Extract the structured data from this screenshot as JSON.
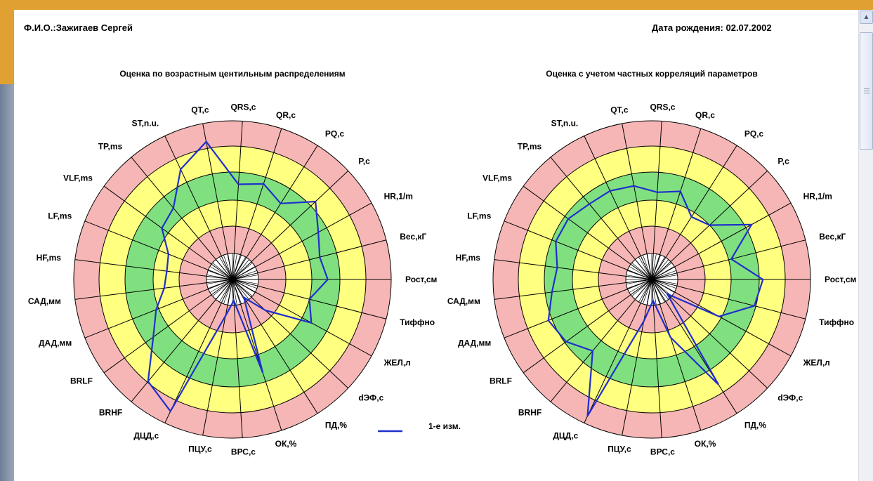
{
  "header": {
    "name_label": "Ф.И.О.:Зажигаев Сергей",
    "birth_label": "Дата рождения: 02.07.2002"
  },
  "legend": {
    "label": "1-е изм.",
    "color": "#1f2fcc"
  },
  "colors": {
    "outer_ring": "#f7b6b6",
    "ring_yellow": "#ffff80",
    "ring_green": "#80e080",
    "center": "#ffffff",
    "line": "#1f2fcc"
  },
  "chart_data": [
    {
      "type": "radar",
      "title": "Оценка по возрастным центильным распределениям",
      "axes": [
        "Рост,см",
        "Вес,кГ",
        "HR,1/m",
        "P,c",
        "PQ,c",
        "QR,c",
        "QRS,c",
        "QT,c",
        "ST,n.u.",
        "TP,ms",
        "VLF,ms",
        "LF,ms",
        "HF,ms",
        "САД,мм",
        "ДАД,мм",
        "BRLF",
        "BRHF",
        "ДЦД,с",
        "ПЦУ,с",
        "ВРС,с",
        "ОК,%",
        "ПД,%",
        "dЭФ,с",
        "ЖЕЛ,л",
        "Тиффно"
      ],
      "zones": [
        "center",
        "red",
        "yellow",
        "green",
        "yellow",
        "red"
      ],
      "series": [
        {
          "name": "1-е изм.",
          "values": [
            3.6,
            3.4,
            3.7,
            4.3,
            3.4,
            3.8,
            3.6,
            5.3,
            4.6,
            3.5,
            3.3,
            2.6,
            2.5,
            2.6,
            3.1,
            3.7,
            5.0,
            5.5,
            1.4,
            0.8,
            3.7,
            0.8,
            1.7,
            3.4,
            3.0
          ]
        }
      ]
    },
    {
      "type": "radar",
      "title": "Оценка с учетом частных корреляций параметров",
      "axes": [
        "Рост,см",
        "Вес,кГ",
        "HR,1/m",
        "P,c",
        "PQ,c",
        "QR,c",
        "QRS,c",
        "QT,c",
        "ST,n.u.",
        "TP,ms",
        "VLF,ms",
        "LF,ms",
        "HF,ms",
        "САД,мм",
        "ДАД,мм",
        "BRLF",
        "BRHF",
        "ДЦД,с",
        "ПЦУ,с",
        "ВРС,с",
        "ОК,%",
        "ПД,%",
        "dЭФ,с",
        "ЖЕЛ,л",
        "Тиффно"
      ],
      "zones": [
        "center",
        "red",
        "yellow",
        "green",
        "yellow",
        "red"
      ],
      "series": [
        {
          "name": "1-е изм.",
          "values": [
            4.2,
            3.1,
            4.3,
            3.0,
            2.8,
            3.5,
            3.3,
            3.6,
            3.7,
            3.7,
            3.9,
            3.9,
            3.6,
            3.8,
            4.2,
            4.0,
            3.5,
            5.7,
            1.6,
            0.8,
            2.3,
            4.7,
            0.8,
            2.9,
            4.0
          ]
        }
      ]
    }
  ]
}
